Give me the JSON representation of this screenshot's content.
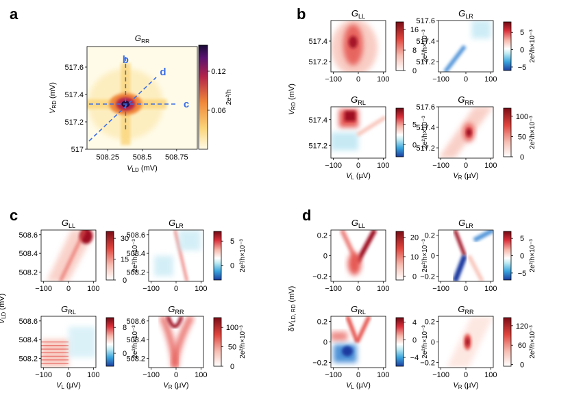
{
  "panel_letters": [
    "a",
    "b",
    "c",
    "d"
  ],
  "chart_data": [
    {
      "panel": "a",
      "type": "heatmap",
      "title": "G_RR",
      "xlabel": "V_LD (mV)",
      "ylabel": "V_RD (mV)",
      "xlim": [
        508.1,
        508.9
      ],
      "ylim": [
        517.0,
        517.75
      ],
      "xticks": [
        "508.25",
        "508.5",
        "508.75"
      ],
      "xtick_values": [
        508.25,
        508.5,
        508.75
      ],
      "yticks": [
        "517",
        "517.2",
        "517.4",
        "517.6"
      ],
      "ytick_values": [
        517.0,
        517.2,
        517.4,
        517.6
      ],
      "peak": {
        "x": 508.38,
        "y": 517.33,
        "value": 0.16
      },
      "colorbar": {
        "label": "2e²/h",
        "ticks": [
          "0.06",
          "0.12"
        ],
        "tick_values": [
          0.06,
          0.12
        ],
        "range": [
          0,
          0.16
        ],
        "cmap": "inferno-like"
      },
      "cut_labels": [
        "b",
        "c",
        "d"
      ],
      "cut_color": "#3b6ee8"
    },
    {
      "panel": "b",
      "type": "heatmap-grid",
      "ylabel": "V_RD (mV)",
      "subplots": [
        {
          "title": "G_LL",
          "xlabel": "",
          "ylim": [
            517.1,
            517.6
          ],
          "yticks": [
            "517.2",
            "517.4"
          ],
          "xticks": [
            "−100",
            "0",
            "100"
          ],
          "colorbar": {
            "label": "2e²/h×10⁻³",
            "ticks": [
              "0",
              "8",
              "16"
            ],
            "tick_values": [
              0,
              8,
              16
            ],
            "range": [
              0,
              19
            ],
            "cmap": "reds"
          }
        },
        {
          "title": "G_LR",
          "xlabel": "",
          "ylim": [
            517.1,
            517.6
          ],
          "yticks": [
            "517.2",
            "517.4",
            "517.6"
          ],
          "xticks": [
            "−100",
            "0",
            "100"
          ],
          "colorbar": {
            "label": "2e²/h×10⁻³",
            "ticks": [
              "−5",
              "0",
              "5"
            ],
            "tick_values": [
              -5,
              0,
              5
            ],
            "range": [
              -6,
              8
            ],
            "cmap": "diverging"
          }
        },
        {
          "title": "G_RL",
          "xlabel": "V_L (µV)",
          "ylim": [
            517.1,
            517.5
          ],
          "yticks": [
            "517.2",
            "517.4"
          ],
          "xticks": [
            "−100",
            "0",
            "100"
          ],
          "colorbar": {
            "label": "2e²/h×10⁻³",
            "ticks": [
              "0",
              "5"
            ],
            "tick_values": [
              0,
              5
            ],
            "range": [
              -3,
              9
            ],
            "cmap": "diverging"
          }
        },
        {
          "title": "G_RR",
          "xlabel": "V_R (µV)",
          "ylim": [
            517.1,
            517.6
          ],
          "yticks": [
            "517.2",
            "517.4",
            "517.6"
          ],
          "xticks": [
            "−100",
            "0",
            "100"
          ],
          "colorbar": {
            "label": "2e²/h×10⁻³",
            "ticks": [
              "0",
              "50",
              "100"
            ],
            "tick_values": [
              0,
              50,
              100
            ],
            "range": [
              0,
              120
            ],
            "cmap": "reds"
          }
        }
      ]
    },
    {
      "panel": "c",
      "type": "heatmap-grid",
      "ylabel": "V_LD (mV)",
      "subplots": [
        {
          "title": "G_LL",
          "xlabel": "",
          "ylim": [
            508.1,
            508.65
          ],
          "yticks": [
            "508.2",
            "508.4",
            "508.6"
          ],
          "xticks": [
            "−100",
            "0",
            "100"
          ],
          "colorbar": {
            "label": "2e²/h×10⁻³",
            "ticks": [
              "0",
              "15",
              "30"
            ],
            "tick_values": [
              0,
              15,
              30
            ],
            "range": [
              0,
              35
            ],
            "cmap": "reds"
          }
        },
        {
          "title": "G_LR",
          "xlabel": "",
          "ylim": [
            508.1,
            508.65
          ],
          "yticks": [
            "508.2",
            "508.4",
            "508.6"
          ],
          "xticks": [
            "−100",
            "0",
            "100"
          ],
          "colorbar": {
            "label": "2e²/h×10⁻³",
            "ticks": [
              "0",
              "5"
            ],
            "tick_values": [
              0,
              5
            ],
            "range": [
              -3,
              7
            ],
            "cmap": "diverging"
          }
        },
        {
          "title": "G_RL",
          "xlabel": "V_L (µV)",
          "ylim": [
            508.1,
            508.65
          ],
          "yticks": [
            "508.2",
            "508.4",
            "508.6"
          ],
          "xticks": [
            "−100",
            "0",
            "100"
          ],
          "colorbar": {
            "label": "2e²/h×10⁻³",
            "ticks": [
              "0",
              "8"
            ],
            "tick_values": [
              0,
              8
            ],
            "range": [
              -4,
              11
            ],
            "cmap": "diverging"
          }
        },
        {
          "title": "G_RR",
          "xlabel": "V_R (µV)",
          "ylim": [
            508.1,
            508.65
          ],
          "yticks": [
            "508.2",
            "508.4",
            "508.6"
          ],
          "xticks": [
            "−100",
            "0",
            "100"
          ],
          "colorbar": {
            "label": "2e²/h×10⁻³",
            "ticks": [
              "0",
              "50",
              "100"
            ],
            "tick_values": [
              0,
              50,
              100
            ],
            "range": [
              0,
              125
            ],
            "cmap": "reds"
          }
        }
      ]
    },
    {
      "panel": "d",
      "type": "heatmap-grid",
      "ylabel": "δV_LD, RD (mV)",
      "subplots": [
        {
          "title": "G_LL",
          "xlabel": "",
          "ylim": [
            -0.25,
            0.25
          ],
          "yticks": [
            "−0.2",
            "0",
            "0.2"
          ],
          "xticks": [
            "−100",
            "0",
            "100"
          ],
          "colorbar": {
            "label": "2e²/h×10⁻³",
            "ticks": [
              "0",
              "10",
              "20"
            ],
            "tick_values": [
              0,
              10,
              20
            ],
            "range": [
              -2,
              23
            ],
            "cmap": "reds"
          }
        },
        {
          "title": "G_LR",
          "xlabel": "",
          "ylim": [
            -0.25,
            0.25
          ],
          "yticks": [
            "−0.2",
            "0",
            "0.2"
          ],
          "xticks": [
            "−100",
            "0",
            "100"
          ],
          "colorbar": {
            "label": "2e²/h×10⁻³",
            "ticks": [
              "−5",
              "0",
              "5"
            ],
            "tick_values": [
              -5,
              0,
              5
            ],
            "range": [
              -7,
              7
            ],
            "cmap": "diverging"
          }
        },
        {
          "title": "G_RL",
          "xlabel": "V_L (µV)",
          "ylim": [
            -0.25,
            0.25
          ],
          "yticks": [
            "−0.2",
            "0",
            "0.2"
          ],
          "xticks": [
            "−100",
            "0",
            "100"
          ],
          "colorbar": {
            "label": "2e²/h×10⁻³",
            "ticks": [
              "−4",
              "0",
              "4"
            ],
            "tick_values": [
              -4,
              0,
              4
            ],
            "range": [
              -6,
              5
            ],
            "cmap": "diverging"
          }
        },
        {
          "title": "G_RR",
          "xlabel": "V_R (µV)",
          "ylim": [
            -0.25,
            0.25
          ],
          "yticks": [
            "−0.2",
            "0",
            "0.2"
          ],
          "xticks": [
            "−100",
            "0",
            "100"
          ],
          "colorbar": {
            "label": "2e²/h×10⁻³",
            "ticks": [
              "0",
              "60",
              "120"
            ],
            "tick_values": [
              0,
              60,
              120
            ],
            "range": [
              -5,
              145
            ],
            "cmap": "reds"
          }
        }
      ]
    }
  ]
}
